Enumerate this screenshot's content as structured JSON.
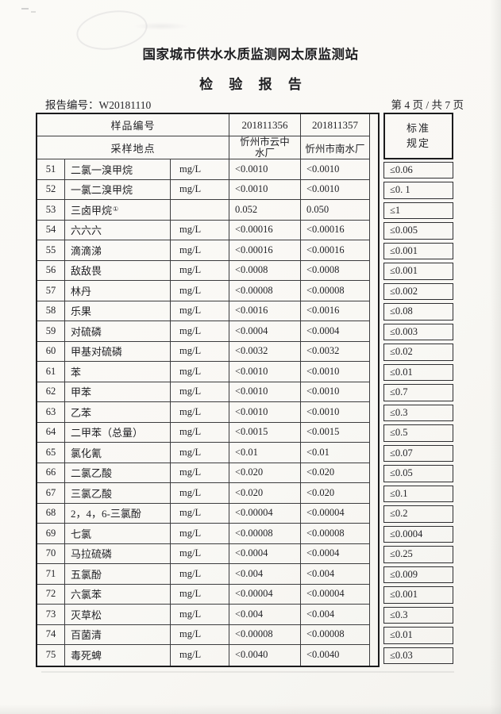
{
  "page": {
    "org_title": "国家城市供水水质监测网太原监测站",
    "report_title": "检 验 报 告",
    "report_no_label": "报告编号：",
    "report_no": "W20181110",
    "page_info": "第 4 页 / 共 7 页"
  },
  "table": {
    "header": {
      "sample_id_label": "样品编号",
      "sampling_site_label": "采样地点",
      "sample1_id": "201811356",
      "sample2_id": "201811357",
      "sample1_site": "忻州市云中水厂",
      "sample2_site": "忻州市南水厂",
      "standard_line1": "标准",
      "standard_line2": "规定"
    },
    "rows": [
      {
        "no": "51",
        "name": "二氯一溴甲烷",
        "unit": "mg/L",
        "v1": "<0.0010",
        "v2": "<0.0010",
        "std": "≤0.06"
      },
      {
        "no": "52",
        "name": "一氯二溴甲烷",
        "unit": "mg/L",
        "v1": "<0.0010",
        "v2": "<0.0010",
        "std": "≤0. 1"
      },
      {
        "no": "53",
        "name": "三卤甲烷",
        "name_sup": "①",
        "unit": "",
        "v1": "0.052",
        "v2": "0.050",
        "std": "≤1"
      },
      {
        "no": "54",
        "name": "六六六",
        "unit": "mg/L",
        "v1": "<0.00016",
        "v2": "<0.00016",
        "std": "≤0.005"
      },
      {
        "no": "55",
        "name": "滴滴涕",
        "unit": "mg/L",
        "v1": "<0.00016",
        "v2": "<0.00016",
        "std": "≤0.001"
      },
      {
        "no": "56",
        "name": "敌敌畏",
        "unit": "mg/L",
        "v1": "<0.0008",
        "v2": "<0.0008",
        "std": "≤0.001"
      },
      {
        "no": "57",
        "name": "林丹",
        "unit": "mg/L",
        "v1": "<0.00008",
        "v2": "<0.00008",
        "std": "≤0.002"
      },
      {
        "no": "58",
        "name": "乐果",
        "unit": "mg/L",
        "v1": "<0.0016",
        "v2": "<0.0016",
        "std": "≤0.08"
      },
      {
        "no": "59",
        "name": "对硫磷",
        "unit": "mg/L",
        "v1": "<0.0004",
        "v2": "<0.0004",
        "std": "≤0.003"
      },
      {
        "no": "60",
        "name": "甲基对硫磷",
        "unit": "mg/L",
        "v1": "<0.0032",
        "v2": "<0.0032",
        "std": "≤0.02"
      },
      {
        "no": "61",
        "name": "苯",
        "unit": "mg/L",
        "v1": "<0.0010",
        "v2": "<0.0010",
        "std": "≤0.01"
      },
      {
        "no": "62",
        "name": "甲苯",
        "unit": "mg/L",
        "v1": "<0.0010",
        "v2": "<0.0010",
        "std": "≤0.7"
      },
      {
        "no": "63",
        "name": "乙苯",
        "unit": "mg/L",
        "v1": "<0.0010",
        "v2": "<0.0010",
        "std": "≤0.3"
      },
      {
        "no": "64",
        "name": "二甲苯（总量）",
        "unit": "mg/L",
        "v1": "<0.0015",
        "v2": "<0.0015",
        "std": "≤0.5"
      },
      {
        "no": "65",
        "name": "氯化氰",
        "unit": "mg/L",
        "v1": "<0.01",
        "v2": "<0.01",
        "std": "≤0.07"
      },
      {
        "no": "66",
        "name": "二氯乙酸",
        "unit": "mg/L",
        "v1": "<0.020",
        "v2": "<0.020",
        "std": "≤0.05"
      },
      {
        "no": "67",
        "name": "三氯乙酸",
        "unit": "mg/L",
        "v1": "<0.020",
        "v2": "<0.020",
        "std": "≤0.1"
      },
      {
        "no": "68",
        "name": "2，4，6-三氯酚",
        "unit": "mg/L",
        "v1": "<0.00004",
        "v2": "<0.00004",
        "std": "≤0.2"
      },
      {
        "no": "69",
        "name": "七氯",
        "unit": "mg/L",
        "v1": "<0.00008",
        "v2": "<0.00008",
        "std": "≤0.0004"
      },
      {
        "no": "70",
        "name": "马拉硫磷",
        "unit": "mg/L",
        "v1": "<0.0004",
        "v2": "<0.0004",
        "std": "≤0.25"
      },
      {
        "no": "71",
        "name": "五氯酚",
        "unit": "mg/L",
        "v1": "<0.004",
        "v2": "<0.004",
        "std": "≤0.009"
      },
      {
        "no": "72",
        "name": "六氯苯",
        "unit": "mg/L",
        "v1": "<0.00004",
        "v2": "<0.00004",
        "std": "≤0.001"
      },
      {
        "no": "73",
        "name": "灭草松",
        "unit": "mg/L",
        "v1": "<0.004",
        "v2": "<0.004",
        "std": "≤0.3"
      },
      {
        "no": "74",
        "name": "百菌清",
        "unit": "mg/L",
        "v1": "<0.00008",
        "v2": "<0.00008",
        "std": "≤0.01"
      },
      {
        "no": "75",
        "name": "毒死蜱",
        "unit": "mg/L",
        "v1": "<0.0040",
        "v2": "<0.0040",
        "std": "≤0.03"
      }
    ]
  }
}
